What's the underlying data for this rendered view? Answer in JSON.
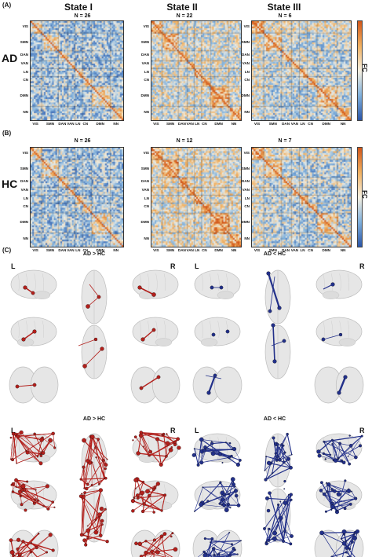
{
  "panels": {
    "A": "(A)",
    "B": "(B)",
    "C": "(C)"
  },
  "states": [
    "State I",
    "State II",
    "State III"
  ],
  "groups": [
    "AD",
    "HC"
  ],
  "counts": {
    "AD": [
      "N = 26",
      "N = 22",
      "N = 6"
    ],
    "HC": [
      "N = 26",
      "N = 12",
      "N = 7"
    ]
  },
  "networks": [
    "VIS",
    "SMN",
    "DAN",
    "VAN",
    "LN",
    "CN",
    "DMN",
    "NN"
  ],
  "network_row_frac": [
    0.06,
    0.22,
    0.35,
    0.44,
    0.52,
    0.6,
    0.76,
    0.93
  ],
  "colorbar_label": "FC",
  "comparisons": {
    "top": {
      "left": "AD > HC",
      "right": "AD < HC"
    },
    "bottom": {
      "left": "AD > HC",
      "right": "AD < HC"
    }
  },
  "sides": {
    "L": "L",
    "R": "R"
  },
  "colors": {
    "red": "#b3201c",
    "blue": "#22308a",
    "warm": "#e07a2a",
    "cool": "#3a78c0",
    "brain": "#dcdcdc"
  }
}
